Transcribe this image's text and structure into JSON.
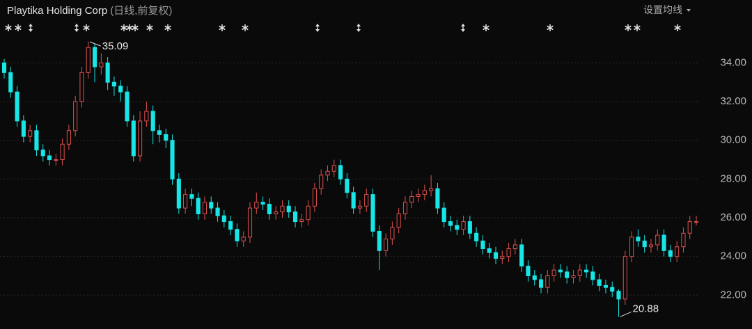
{
  "chart_data": {
    "type": "candlestick",
    "title": "Playtika Holding Corp",
    "subtitle": "(日线,前复权)",
    "ma_button": "设置均线",
    "up_color": "#e0504f",
    "down_color": "#18e6e6",
    "grid": true,
    "ylim": [
      20.25,
      37.25
    ],
    "yticks": [
      {
        "value": 22,
        "label": "22.00"
      },
      {
        "value": 24,
        "label": "24.00"
      },
      {
        "value": 26,
        "label": "26.00"
      },
      {
        "value": 28,
        "label": "28.00"
      },
      {
        "value": 30,
        "label": "30.00"
      },
      {
        "value": 32,
        "label": "32.00"
      },
      {
        "value": 34,
        "label": "34.00"
      }
    ],
    "max_label": 35.09,
    "min_label": 20.88,
    "open": [
      34.0,
      33.5,
      32.5,
      31.0,
      30.2,
      30.5,
      29.5,
      29.2,
      29.0,
      29.0,
      29.8,
      30.5,
      32.0,
      33.5,
      34.8,
      33.8,
      34.0,
      33.0,
      32.8,
      32.5,
      31.0,
      29.2,
      31.0,
      31.5,
      30.5,
      30.3,
      30.0,
      28.0,
      26.5,
      27.2,
      27.0,
      26.2,
      26.8,
      26.5,
      26.1,
      25.8,
      25.4,
      24.8,
      25.0,
      26.5,
      26.8,
      26.7,
      26.2,
      26.3,
      26.6,
      26.3,
      25.8,
      25.9,
      26.6,
      27.5,
      28.2,
      28.4,
      28.7,
      28.0,
      27.3,
      26.5,
      26.6,
      27.2,
      25.3,
      24.3,
      24.9,
      25.5,
      26.2,
      26.8,
      27.1,
      27.2,
      27.4,
      27.5,
      26.5,
      25.8,
      25.6,
      25.4,
      25.8,
      25.2,
      24.8,
      24.4,
      24.2,
      23.9,
      24.0,
      24.4,
      24.6,
      23.5,
      23.0,
      22.8,
      22.4,
      23.0,
      23.3,
      23.2,
      22.9,
      23.0,
      23.3,
      23.2,
      22.8,
      22.5,
      22.4,
      22.2,
      21.8,
      24.0,
      25.0,
      24.8,
      24.5,
      24.6,
      25.1,
      24.3,
      24.0,
      24.5,
      25.2,
      25.8
    ],
    "high": [
      34.2,
      33.8,
      32.8,
      31.3,
      30.8,
      30.8,
      29.8,
      29.5,
      29.3,
      30.1,
      30.8,
      32.3,
      33.8,
      35.09,
      35.0,
      34.5,
      34.3,
      33.3,
      33.1,
      32.8,
      31.3,
      31.5,
      32.0,
      31.8,
      30.8,
      30.6,
      30.3,
      28.3,
      27.5,
      27.5,
      27.3,
      27.1,
      27.1,
      26.8,
      26.4,
      26.1,
      25.7,
      25.3,
      26.8,
      27.3,
      27.1,
      27.0,
      26.6,
      26.9,
      26.9,
      26.6,
      26.2,
      26.9,
      27.8,
      28.5,
      28.7,
      29.0,
      29.0,
      28.3,
      27.6,
      26.9,
      27.5,
      27.5,
      25.6,
      25.2,
      25.8,
      26.5,
      27.1,
      27.4,
      27.5,
      27.7,
      28.2,
      27.8,
      26.8,
      26.1,
      25.9,
      26.1,
      26.1,
      25.5,
      25.1,
      24.7,
      24.5,
      24.3,
      24.7,
      24.9,
      24.9,
      23.8,
      23.3,
      23.1,
      23.3,
      23.6,
      23.6,
      23.5,
      23.3,
      23.6,
      23.6,
      23.5,
      23.1,
      22.8,
      22.7,
      22.3,
      24.3,
      25.3,
      25.4,
      25.1,
      24.9,
      25.4,
      25.4,
      24.6,
      24.8,
      25.5,
      26.1,
      26.1
    ],
    "low": [
      33.2,
      32.2,
      30.7,
      29.9,
      29.9,
      29.2,
      28.9,
      28.7,
      28.7,
      28.7,
      29.5,
      30.2,
      31.7,
      33.2,
      33.0,
      33.4,
      32.6,
      32.3,
      32.0,
      30.7,
      28.9,
      28.9,
      30.7,
      29.8,
      29.9,
      29.6,
      27.7,
      26.2,
      26.2,
      26.6,
      25.9,
      25.9,
      26.2,
      25.8,
      25.5,
      25.1,
      24.5,
      24.5,
      24.7,
      26.2,
      26.4,
      25.9,
      25.9,
      26.0,
      26.0,
      25.5,
      25.5,
      25.6,
      26.3,
      27.2,
      27.9,
      28.1,
      27.7,
      27.0,
      26.2,
      26.2,
      26.3,
      25.0,
      23.3,
      24.0,
      24.6,
      25.2,
      25.9,
      26.5,
      26.8,
      26.9,
      27.1,
      26.2,
      25.5,
      25.3,
      25.1,
      25.1,
      24.9,
      24.5,
      24.1,
      23.9,
      23.6,
      23.6,
      23.7,
      24.1,
      23.2,
      22.7,
      22.5,
      22.1,
      22.1,
      22.7,
      22.9,
      22.6,
      22.6,
      22.7,
      22.9,
      22.5,
      22.2,
      22.1,
      21.9,
      20.88,
      21.5,
      23.7,
      24.5,
      24.2,
      24.2,
      24.3,
      24.0,
      23.7,
      23.7,
      24.2,
      24.9,
      25.6
    ],
    "close": [
      33.5,
      32.5,
      31.0,
      30.2,
      30.5,
      29.5,
      29.2,
      29.0,
      29.0,
      29.8,
      30.5,
      32.0,
      33.5,
      34.8,
      33.8,
      34.0,
      33.0,
      32.8,
      32.5,
      31.0,
      29.2,
      31.0,
      31.5,
      30.5,
      30.3,
      30.0,
      28.0,
      26.5,
      27.2,
      27.0,
      26.2,
      26.8,
      26.5,
      26.1,
      25.8,
      25.4,
      24.8,
      25.0,
      26.5,
      26.8,
      26.7,
      26.2,
      26.3,
      26.6,
      26.3,
      25.8,
      25.9,
      26.6,
      27.5,
      28.2,
      28.4,
      28.7,
      28.0,
      27.3,
      26.5,
      26.6,
      27.2,
      25.3,
      24.3,
      24.9,
      25.5,
      26.2,
      26.8,
      27.1,
      27.2,
      27.4,
      27.5,
      26.5,
      25.8,
      25.6,
      25.4,
      25.8,
      25.2,
      24.8,
      24.4,
      24.2,
      23.9,
      24.0,
      24.4,
      24.6,
      23.5,
      23.0,
      22.8,
      22.4,
      23.0,
      23.3,
      23.2,
      22.9,
      23.0,
      23.3,
      23.2,
      22.8,
      22.5,
      22.4,
      22.2,
      21.8,
      24.0,
      25.0,
      24.8,
      24.5,
      24.6,
      25.1,
      24.3,
      24.0,
      24.5,
      25.2,
      25.8,
      25.8
    ]
  }
}
